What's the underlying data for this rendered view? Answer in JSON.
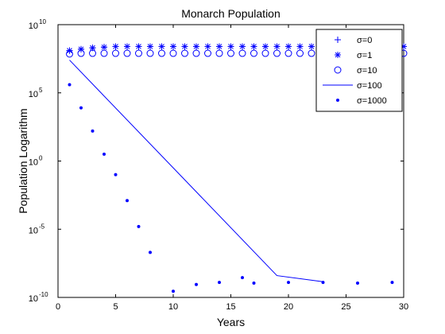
{
  "chart_data": {
    "type": "scatter",
    "title": "Monarch Population",
    "xlabel": "Years",
    "ylabel": "Population Logarithm",
    "xlim": [
      0,
      30
    ],
    "ylim_log10": [
      -10,
      10
    ],
    "yscale": "log",
    "grid": false,
    "legend_position": "top-right",
    "x_ticks": [
      {
        "value": 0,
        "label": "0"
      },
      {
        "value": 5,
        "label": "5"
      },
      {
        "value": 10,
        "label": "10"
      },
      {
        "value": 15,
        "label": "15"
      },
      {
        "value": 20,
        "label": "20"
      },
      {
        "value": 25,
        "label": "25"
      },
      {
        "value": 30,
        "label": "30"
      }
    ],
    "y_ticks": [
      {
        "value": 10,
        "base": "10",
        "exp": "10"
      },
      {
        "value": 5,
        "base": "10",
        "exp": "5"
      },
      {
        "value": 0,
        "base": "10",
        "exp": "0"
      },
      {
        "value": -5,
        "base": "10",
        "exp": "-5"
      },
      {
        "value": -10,
        "base": "10",
        "exp": "-10"
      }
    ],
    "color": "#0000ff",
    "series": [
      {
        "name": "σ=0",
        "marker": "plus",
        "x": [
          1,
          2,
          3,
          4,
          5,
          6,
          7,
          8,
          9,
          10,
          11,
          12,
          13,
          14,
          15,
          16,
          17,
          18,
          19,
          20,
          21,
          22,
          23,
          24,
          25,
          26,
          27,
          28,
          29,
          30
        ],
        "log10_y": [
          8.1,
          8.2,
          8.3,
          8.35,
          8.4,
          8.4,
          8.4,
          8.4,
          8.4,
          8.4,
          8.4,
          8.4,
          8.4,
          8.4,
          8.4,
          8.4,
          8.4,
          8.4,
          8.4,
          8.4,
          8.4,
          8.4,
          8.4,
          8.4,
          8.4,
          8.4,
          8.4,
          8.4,
          8.4,
          8.4
        ]
      },
      {
        "name": "σ=1",
        "marker": "star",
        "x": [
          1,
          2,
          3,
          4,
          5,
          6,
          7,
          8,
          9,
          10,
          11,
          12,
          13,
          14,
          15,
          16,
          17,
          18,
          19,
          20,
          21,
          22,
          23,
          24,
          25,
          26,
          27,
          28,
          29,
          30
        ],
        "log10_y": [
          8.1,
          8.2,
          8.3,
          8.35,
          8.4,
          8.4,
          8.4,
          8.4,
          8.4,
          8.4,
          8.4,
          8.4,
          8.4,
          8.4,
          8.4,
          8.4,
          8.4,
          8.4,
          8.4,
          8.4,
          8.4,
          8.4,
          8.4,
          8.4,
          8.4,
          8.4,
          8.4,
          8.4,
          8.4,
          8.4
        ]
      },
      {
        "name": "σ=10",
        "marker": "circle",
        "x": [
          1,
          2,
          3,
          4,
          5,
          6,
          7,
          8,
          9,
          10,
          11,
          12,
          13,
          14,
          15,
          16,
          17,
          18,
          19,
          20,
          21,
          22,
          23,
          24,
          25,
          26,
          27,
          28,
          29,
          30
        ],
        "log10_y": [
          7.85,
          7.9,
          7.9,
          7.9,
          7.9,
          7.9,
          7.9,
          7.9,
          7.9,
          7.9,
          7.9,
          7.9,
          7.9,
          7.9,
          7.9,
          7.9,
          7.9,
          7.9,
          7.9,
          7.9,
          7.9,
          7.9,
          7.9,
          7.9,
          7.9,
          7.9,
          7.9,
          7.9,
          7.9,
          7.9
        ]
      },
      {
        "name": "σ=100",
        "marker": "line",
        "x": [
          1,
          19,
          23
        ],
        "log10_y": [
          7.4,
          -8.4,
          -8.85
        ]
      },
      {
        "name": "σ=1000",
        "marker": "dot",
        "x": [
          1,
          2,
          3,
          4,
          5,
          6,
          7,
          8,
          10,
          12,
          14,
          16,
          17,
          20,
          23,
          26,
          29
        ],
        "log10_y": [
          5.6,
          3.9,
          2.2,
          0.5,
          -1.0,
          -2.9,
          -4.8,
          -6.7,
          -9.55,
          -9.05,
          -8.9,
          -8.55,
          -8.95,
          -8.9,
          -8.9,
          -8.95,
          -8.9
        ]
      }
    ]
  }
}
